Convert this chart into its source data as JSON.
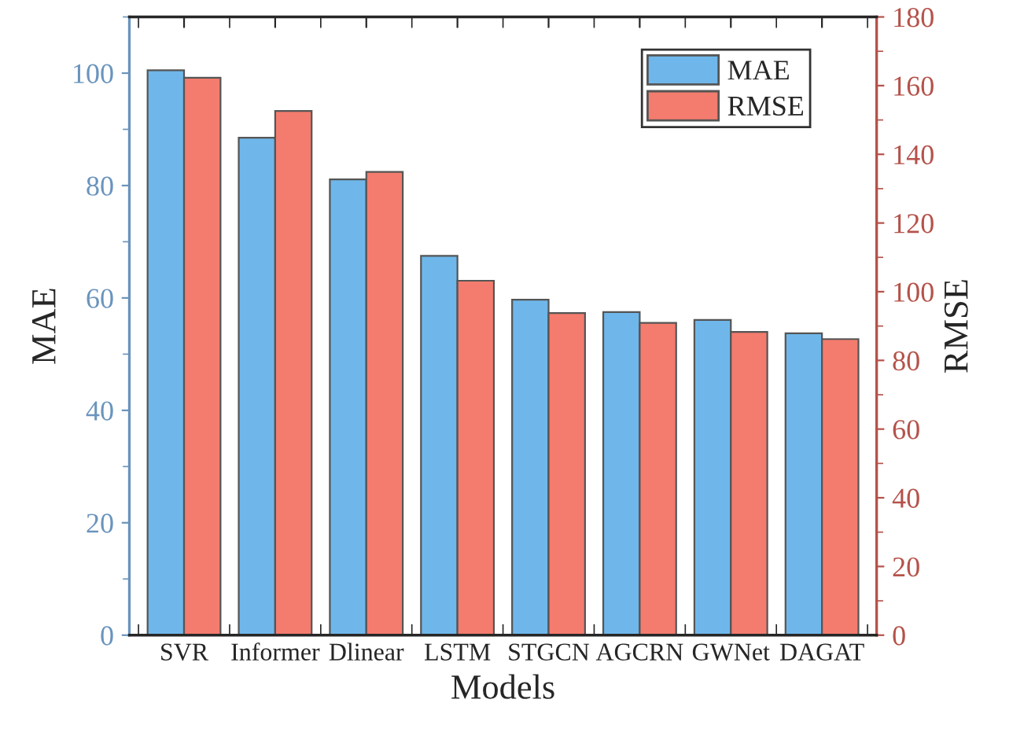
{
  "chart_data": {
    "type": "bar",
    "xlabel": "Models",
    "ylabel": "MAE",
    "y2label": "RMSE",
    "categories": [
      "SVR",
      "Informer",
      "Dlinear",
      "LSTM",
      "STGCN",
      "AGCRN",
      "GWNet",
      "DAGAT"
    ],
    "series": [
      {
        "name": "MAE",
        "color": "#6fb7ea",
        "values": [
          100.5,
          88.5,
          81.1,
          67.5,
          59.7,
          57.5,
          56.1,
          53.7
        ]
      },
      {
        "name": "RMSE",
        "color": "#f47c6e",
        "axis": "y2",
        "values": [
          162.3,
          152.6,
          134.9,
          103.2,
          93.8,
          90.9,
          88.3,
          86.2
        ]
      }
    ],
    "ylim": [
      0,
      110
    ],
    "yticks": [
      0,
      20,
      40,
      60,
      80,
      100
    ],
    "y2lim": [
      0,
      180
    ],
    "y2ticks": [
      0,
      20,
      40,
      60,
      80,
      100,
      120,
      140,
      160,
      180
    ],
    "legend": "top right",
    "grid": false
  }
}
